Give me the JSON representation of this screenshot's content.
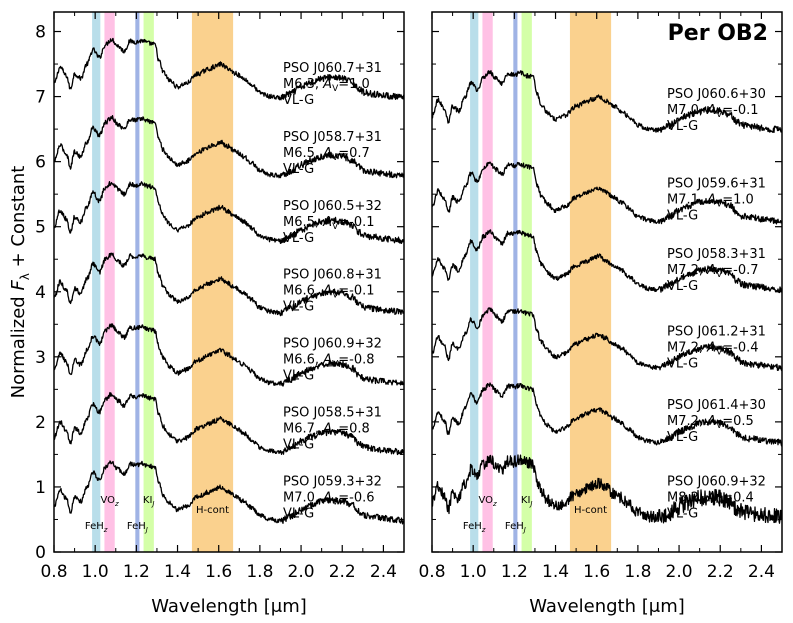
{
  "figure": {
    "ylabel": "Normalized F_λ + Constant",
    "xlabel": "Wavelength [μm]"
  },
  "chart_data": [
    {
      "type": "line",
      "panel": "left",
      "title": "",
      "xlabel": "Wavelength [μm]",
      "ylabel": "Normalized F_λ + Constant",
      "xlim": [
        0.8,
        2.5
      ],
      "ylim": [
        0,
        8.3
      ],
      "xticks": [
        "0.8",
        "1.0",
        "1.2",
        "1.4",
        "1.6",
        "1.8",
        "2.0",
        "2.2",
        "2.4"
      ],
      "yticks": [
        "0",
        "1",
        "2",
        "3",
        "4",
        "5",
        "6",
        "7",
        "8"
      ],
      "bands": [
        {
          "name": "FeH_z",
          "label": "FeH",
          "sub": "z",
          "xmin": 0.985,
          "xmax": 1.025,
          "color": "#add8e6",
          "label_y": 0.35
        },
        {
          "name": "VO_z",
          "label": "VO",
          "sub": "z",
          "xmin": 1.045,
          "xmax": 1.095,
          "color": "#ffb6e1",
          "label_y": 0.75
        },
        {
          "name": "FeH_J",
          "label": "FeH",
          "sub": "J",
          "xmin": 1.195,
          "xmax": 1.215,
          "color": "#8fa6e0",
          "label_y": 0.35
        },
        {
          "name": "KI_J",
          "label": "KI",
          "sub": "J",
          "xmin": 1.235,
          "xmax": 1.285,
          "color": "#ccff99",
          "label_y": 0.75
        },
        {
          "name": "H-cont",
          "label": "H-cont",
          "sub": "",
          "xmin": 1.47,
          "xmax": 1.67,
          "color": "#f9c97a",
          "label_y": 0.6
        }
      ],
      "series": [
        {
          "name": "PSO J060.7+31",
          "spt": "M6.3",
          "av": "1.0",
          "grav": "VL-G",
          "offset": 6.5,
          "label_y": 7.38
        },
        {
          "name": "PSO J058.7+31",
          "spt": "M6.5",
          "av": "0.7",
          "grav": "VL-G",
          "offset": 5.3,
          "label_y": 6.32
        },
        {
          "name": "PSO J060.5+32",
          "spt": "M6.5",
          "av": "-0.1",
          "grav": "VL-G",
          "offset": 4.3,
          "label_y": 5.26
        },
        {
          "name": "PSO J060.8+31",
          "spt": "M6.6",
          "av": "-0.1",
          "grav": "VL-G",
          "offset": 3.2,
          "label_y": 4.2
        },
        {
          "name": "PSO J060.9+32",
          "spt": "M6.6",
          "av": "-0.8",
          "grav": "VL-G",
          "offset": 2.1,
          "label_y": 3.14
        },
        {
          "name": "PSO J058.5+31",
          "spt": "M6.7",
          "av": "0.8",
          "grav": "VL-G",
          "offset": 1.05,
          "label_y": 2.08
        },
        {
          "name": "PSO J059.3+32",
          "spt": "M7.0",
          "av": "-0.6",
          "grav": "VL-G",
          "offset": 0.0,
          "label_y": 1.02
        }
      ]
    },
    {
      "type": "line",
      "panel": "right",
      "title": "Per OB2",
      "xlabel": "Wavelength [μm]",
      "ylabel": "",
      "xlim": [
        0.8,
        2.5
      ],
      "ylim": [
        0,
        8.3
      ],
      "xticks": [
        "0.8",
        "1.0",
        "1.2",
        "1.4",
        "1.6",
        "1.8",
        "2.0",
        "2.2",
        "2.4"
      ],
      "yticks": [],
      "bands": [
        {
          "name": "FeH_z",
          "label": "FeH",
          "sub": "z",
          "xmin": 0.985,
          "xmax": 1.025,
          "color": "#add8e6",
          "label_y": 0.35
        },
        {
          "name": "VO_z",
          "label": "VO",
          "sub": "z",
          "xmin": 1.045,
          "xmax": 1.095,
          "color": "#ffb6e1",
          "label_y": 0.75
        },
        {
          "name": "FeH_J",
          "label": "FeH",
          "sub": "J",
          "xmin": 1.195,
          "xmax": 1.215,
          "color": "#8fa6e0",
          "label_y": 0.35
        },
        {
          "name": "KI_J",
          "label": "KI",
          "sub": "J",
          "xmin": 1.235,
          "xmax": 1.285,
          "color": "#ccff99",
          "label_y": 0.75
        },
        {
          "name": "H-cont",
          "label": "H-cont",
          "sub": "",
          "xmin": 1.47,
          "xmax": 1.67,
          "color": "#f9c97a",
          "label_y": 0.6
        }
      ],
      "series": [
        {
          "name": "PSO J060.6+30",
          "spt": "M7.0",
          "av": "-0.1",
          "grav": "VL-G",
          "offset": 6.0,
          "label_y": 6.98
        },
        {
          "name": "PSO J059.6+31",
          "spt": "M7.1",
          "av": "1.0",
          "grav": "VL-G",
          "offset": 4.6,
          "label_y": 5.6
        },
        {
          "name": "PSO J058.3+31",
          "spt": "M7.2",
          "av": "-0.7",
          "grav": "VL-G",
          "offset": 3.55,
          "label_y": 4.52
        },
        {
          "name": "PSO J061.2+31",
          "spt": "M7.2",
          "av": "-0.4",
          "grav": "VL-G",
          "offset": 2.35,
          "label_y": 3.33
        },
        {
          "name": "PSO J061.4+30",
          "spt": "M7.2",
          "av": "0.5",
          "grav": "VL-G",
          "offset": 1.2,
          "label_y": 2.2
        },
        {
          "name": "PSO J060.9+32",
          "spt": "M8.2",
          "av": "0.4",
          "grav": "VL-G",
          "offset": 0.05,
          "label_y": 1.02
        }
      ]
    }
  ]
}
